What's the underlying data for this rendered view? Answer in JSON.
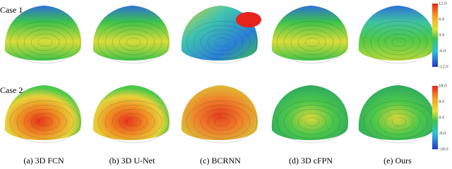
{
  "rows": [
    {
      "label": "Case 1",
      "colorbar_ticks": [
        "12.0",
        "6.0",
        "0.0",
        "-6.0",
        "-12.0"
      ]
    },
    {
      "label": "Case 2",
      "colorbar_ticks": [
        "18.0",
        "9.0",
        "0.0",
        "-9.0",
        "-18.0"
      ]
    }
  ],
  "captions": [
    "(a) 3D FCN",
    "(b) 3D U-Net",
    "(c) BCRNN",
    "(d) 3D cFPN",
    "(e) Ours"
  ]
}
